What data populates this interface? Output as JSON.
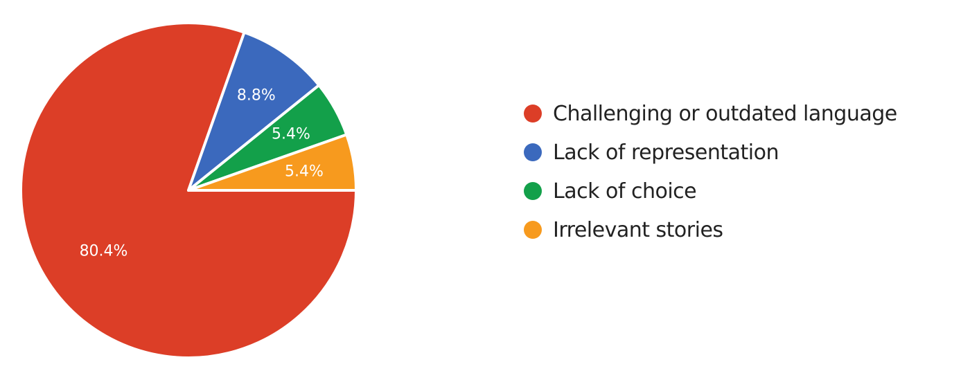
{
  "chart_data": {
    "type": "pie",
    "title": "",
    "legend_position": "right",
    "slices": [
      {
        "label": "Challenging or outdated language",
        "value": 80.4,
        "display": "80.4%",
        "color": "#dc3e27"
      },
      {
        "label": "Lack of representation",
        "value": 8.8,
        "display": "8.8%",
        "color": "#3b69bd"
      },
      {
        "label": "Lack of choice",
        "value": 5.4,
        "display": "5.4%",
        "color": "#13a04a"
      },
      {
        "label": "Irrelevant stories",
        "value": 5.4,
        "display": "5.4%",
        "color": "#f79a1e"
      }
    ]
  }
}
